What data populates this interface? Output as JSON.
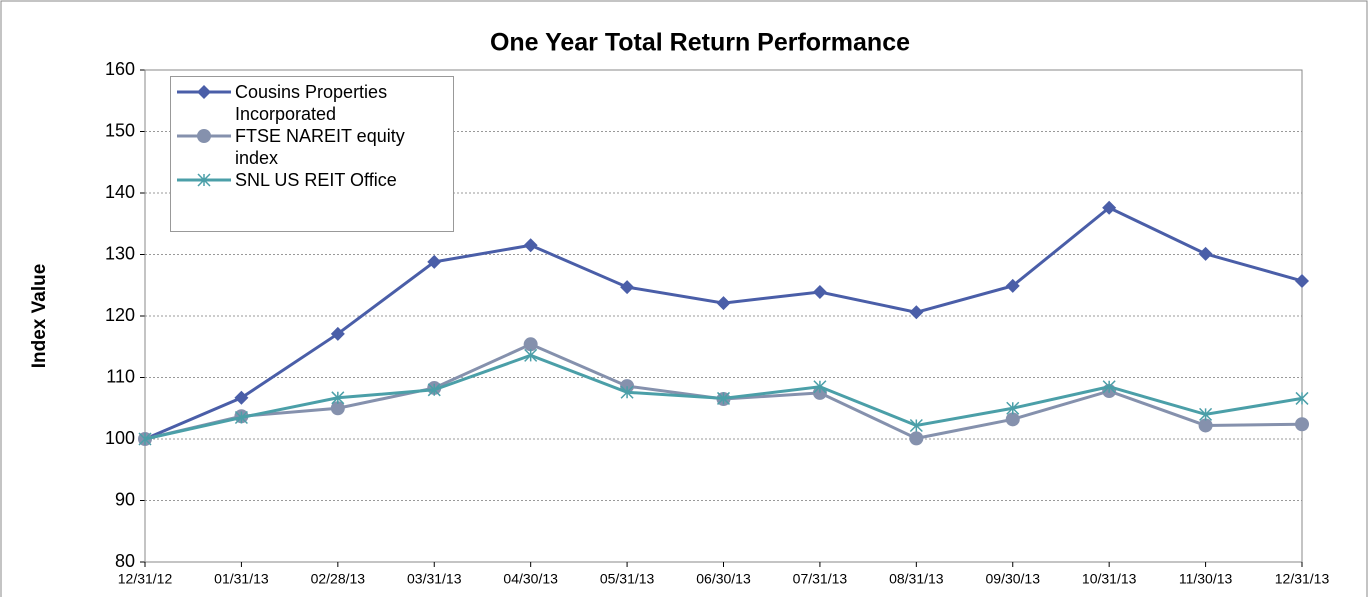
{
  "chart_data": {
    "type": "line",
    "title": "One Year Total Return Performance",
    "y_label": "Index Value",
    "categories": [
      "12/31/12",
      "01/31/13",
      "02/28/13",
      "03/31/13",
      "04/30/13",
      "05/31/13",
      "06/30/13",
      "07/31/13",
      "08/31/13",
      "09/30/13",
      "10/31/13",
      "11/30/13",
      "12/31/13"
    ],
    "series": [
      {
        "name": "Cousins Properties Incorporated",
        "color": "#4a5ea8",
        "marker": "diamond",
        "values": [
          100,
          106.7,
          117.1,
          128.8,
          131.5,
          124.7,
          122.1,
          123.9,
          120.6,
          124.9,
          137.6,
          130.1,
          125.7
        ]
      },
      {
        "name": "FTSE NAREIT equity index",
        "color": "#8591ad",
        "marker": "circle",
        "values": [
          100,
          103.7,
          105,
          108.3,
          115.4,
          108.6,
          106.5,
          107.5,
          100.1,
          103.2,
          107.8,
          102.2,
          102.4
        ]
      },
      {
        "name": "SNL US REIT Office",
        "color": "#4b9fa8",
        "marker": "asterisk",
        "values": [
          100,
          103.5,
          106.7,
          108,
          113.6,
          107.6,
          106.6,
          108.5,
          102.2,
          105,
          108.5,
          104,
          106.6
        ]
      }
    ],
    "ylim": [
      80,
      160
    ],
    "yticks": [
      80,
      90,
      100,
      110,
      120,
      130,
      140,
      150,
      160
    ],
    "grid": true,
    "legend": "upper left"
  }
}
